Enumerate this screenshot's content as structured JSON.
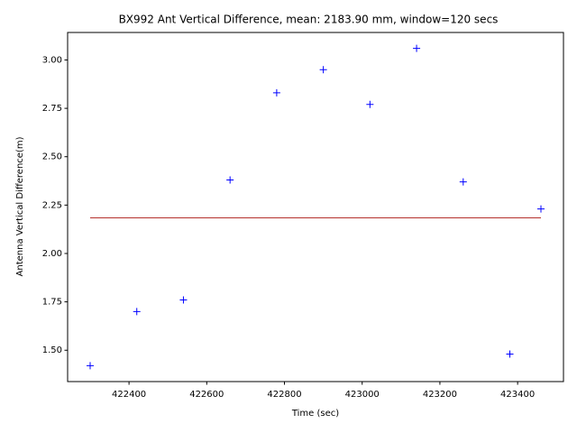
{
  "chart_data": {
    "type": "scatter",
    "title": "BX992 Ant Vertical Difference, mean: 2183.90 mm, window=120 secs",
    "x_label": "Time (sec)",
    "y_label": "Antenna Vertical Difference(m)",
    "x": [
      422300,
      422420,
      422540,
      422660,
      422780,
      422900,
      423020,
      423140,
      423260,
      423380,
      423460
    ],
    "values": [
      1.42,
      1.7,
      1.76,
      2.38,
      2.83,
      2.95,
      2.77,
      3.06,
      2.37,
      1.48,
      2.23
    ],
    "color": "#0000ff",
    "marker": "+",
    "mean_line": {
      "y": 2.1839,
      "x": [
        422300,
        423460
      ],
      "color": "#b5312c"
    },
    "xlim": [
      422242,
      423518
    ],
    "ylim": [
      1.338,
      3.142
    ],
    "xticks": [
      422400,
      422600,
      422800,
      423000,
      423200,
      423400
    ],
    "yticks": [
      {
        "value": 1.5,
        "label": "1.50"
      },
      {
        "value": 1.75,
        "label": "1.75"
      },
      {
        "value": 2.0,
        "label": "2.00"
      },
      {
        "value": 2.25,
        "label": "2.25"
      },
      {
        "value": 2.5,
        "label": "2.50"
      },
      {
        "value": 2.75,
        "label": "2.75"
      },
      {
        "value": 3.0,
        "label": "3.00"
      }
    ],
    "grid": false
  }
}
